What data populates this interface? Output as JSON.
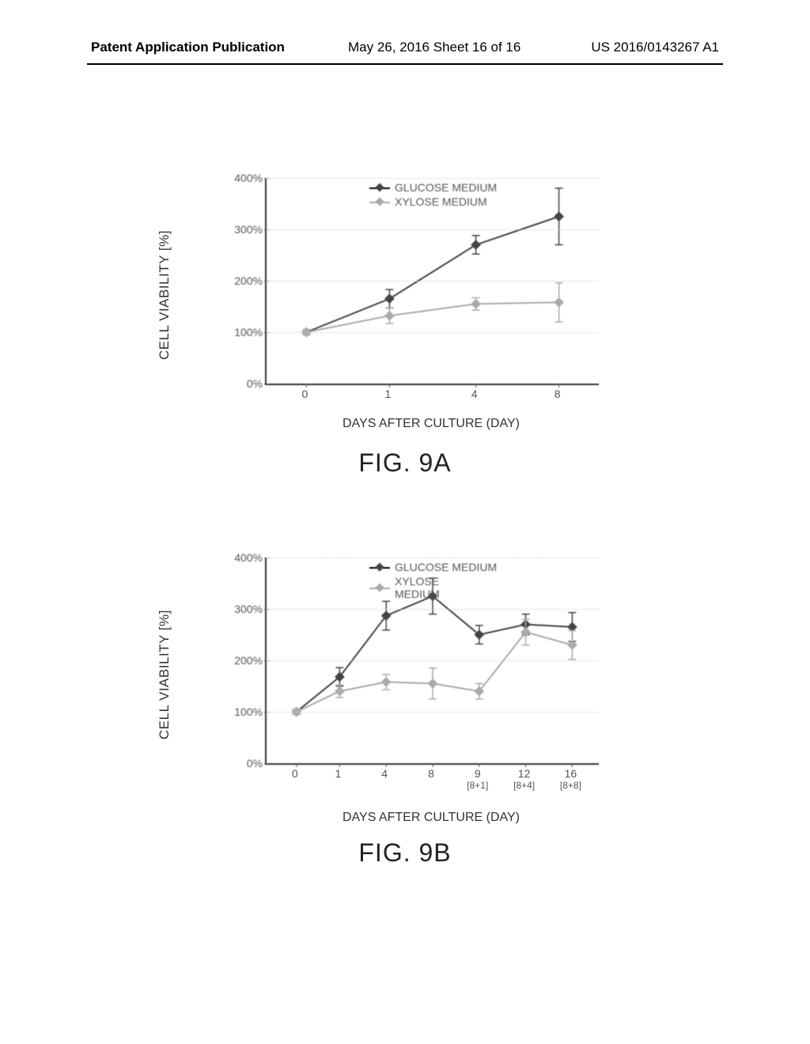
{
  "header": {
    "left": "Patent Application Publication",
    "center": "May 26, 2016  Sheet 16 of 16",
    "right": "US 2016/0143267 A1"
  },
  "chartA": {
    "type": "line-errorbar",
    "ylabel": "CELL VIABILITY [%]",
    "xlabel": "DAYS AFTER CULTURE (DAY)",
    "caption": "FIG. 9A",
    "ylim": [
      0,
      400
    ],
    "ytick_step": 100,
    "yticks": [
      "0%",
      "100%",
      "200%",
      "300%",
      "400%"
    ],
    "xticks": [
      "0",
      "1",
      "4",
      "8"
    ],
    "xtick_positions": [
      0.12,
      0.37,
      0.63,
      0.88
    ],
    "legend": [
      {
        "label": "GLUCOSE MEDIUM",
        "color": "#444444"
      },
      {
        "label": "XYLOSE MEDIUM",
        "color": "#aaaaaa"
      }
    ],
    "series": [
      {
        "name": "glucose",
        "color": "#444444",
        "points_pct": [
          {
            "x": 0.12,
            "y": 100,
            "err": 5
          },
          {
            "x": 0.37,
            "y": 165,
            "err": 18
          },
          {
            "x": 0.63,
            "y": 270,
            "err": 18
          },
          {
            "x": 0.88,
            "y": 325,
            "err": 55
          }
        ]
      },
      {
        "name": "xylose",
        "color": "#aaaaaa",
        "points_pct": [
          {
            "x": 0.12,
            "y": 100,
            "err": 5
          },
          {
            "x": 0.37,
            "y": 132,
            "err": 15
          },
          {
            "x": 0.63,
            "y": 155,
            "err": 12
          },
          {
            "x": 0.88,
            "y": 158,
            "err": 38
          }
        ]
      }
    ],
    "background_color": "#ffffff",
    "grid_color": "#cccccc",
    "label_fontsize": 15
  },
  "chartB": {
    "type": "line-errorbar",
    "ylabel": "CELL VIABILITY [%]",
    "xlabel": "DAYS AFTER CULTURE (DAY)",
    "caption": "FIG. 9B",
    "ylim": [
      0,
      400
    ],
    "ytick_step": 100,
    "yticks": [
      "0%",
      "100%",
      "200%",
      "300%",
      "400%"
    ],
    "xticks": [
      "0",
      "1",
      "4",
      "8",
      "9",
      "12",
      "16"
    ],
    "xtick_sub": [
      "",
      "",
      "",
      "",
      "[8+1]",
      "[8+4]",
      "[8+8]"
    ],
    "xtick_positions": [
      0.09,
      0.22,
      0.36,
      0.5,
      0.64,
      0.78,
      0.92
    ],
    "legend": [
      {
        "label": "GLUCOSE MEDIUM",
        "color": "#444444"
      },
      {
        "label": "XYLOSE\nMEDIUM",
        "color": "#aaaaaa"
      }
    ],
    "series": [
      {
        "name": "glucose",
        "color": "#444444",
        "points_pct": [
          {
            "x": 0.09,
            "y": 100,
            "err": 5
          },
          {
            "x": 0.22,
            "y": 168,
            "err": 18
          },
          {
            "x": 0.36,
            "y": 287,
            "err": 28
          },
          {
            "x": 0.5,
            "y": 325,
            "err": 35
          },
          {
            "x": 0.64,
            "y": 250,
            "err": 18
          },
          {
            "x": 0.78,
            "y": 270,
            "err": 20
          },
          {
            "x": 0.92,
            "y": 265,
            "err": 28
          }
        ]
      },
      {
        "name": "xylose",
        "color": "#aaaaaa",
        "points_pct": [
          {
            "x": 0.09,
            "y": 100,
            "err": 5
          },
          {
            "x": 0.22,
            "y": 140,
            "err": 12
          },
          {
            "x": 0.36,
            "y": 158,
            "err": 15
          },
          {
            "x": 0.5,
            "y": 155,
            "err": 30
          },
          {
            "x": 0.64,
            "y": 140,
            "err": 15
          },
          {
            "x": 0.78,
            "y": 255,
            "err": 25
          },
          {
            "x": 0.92,
            "y": 230,
            "err": 28
          }
        ]
      }
    ],
    "background_color": "#ffffff",
    "grid_color": "#cccccc",
    "label_fontsize": 15
  }
}
